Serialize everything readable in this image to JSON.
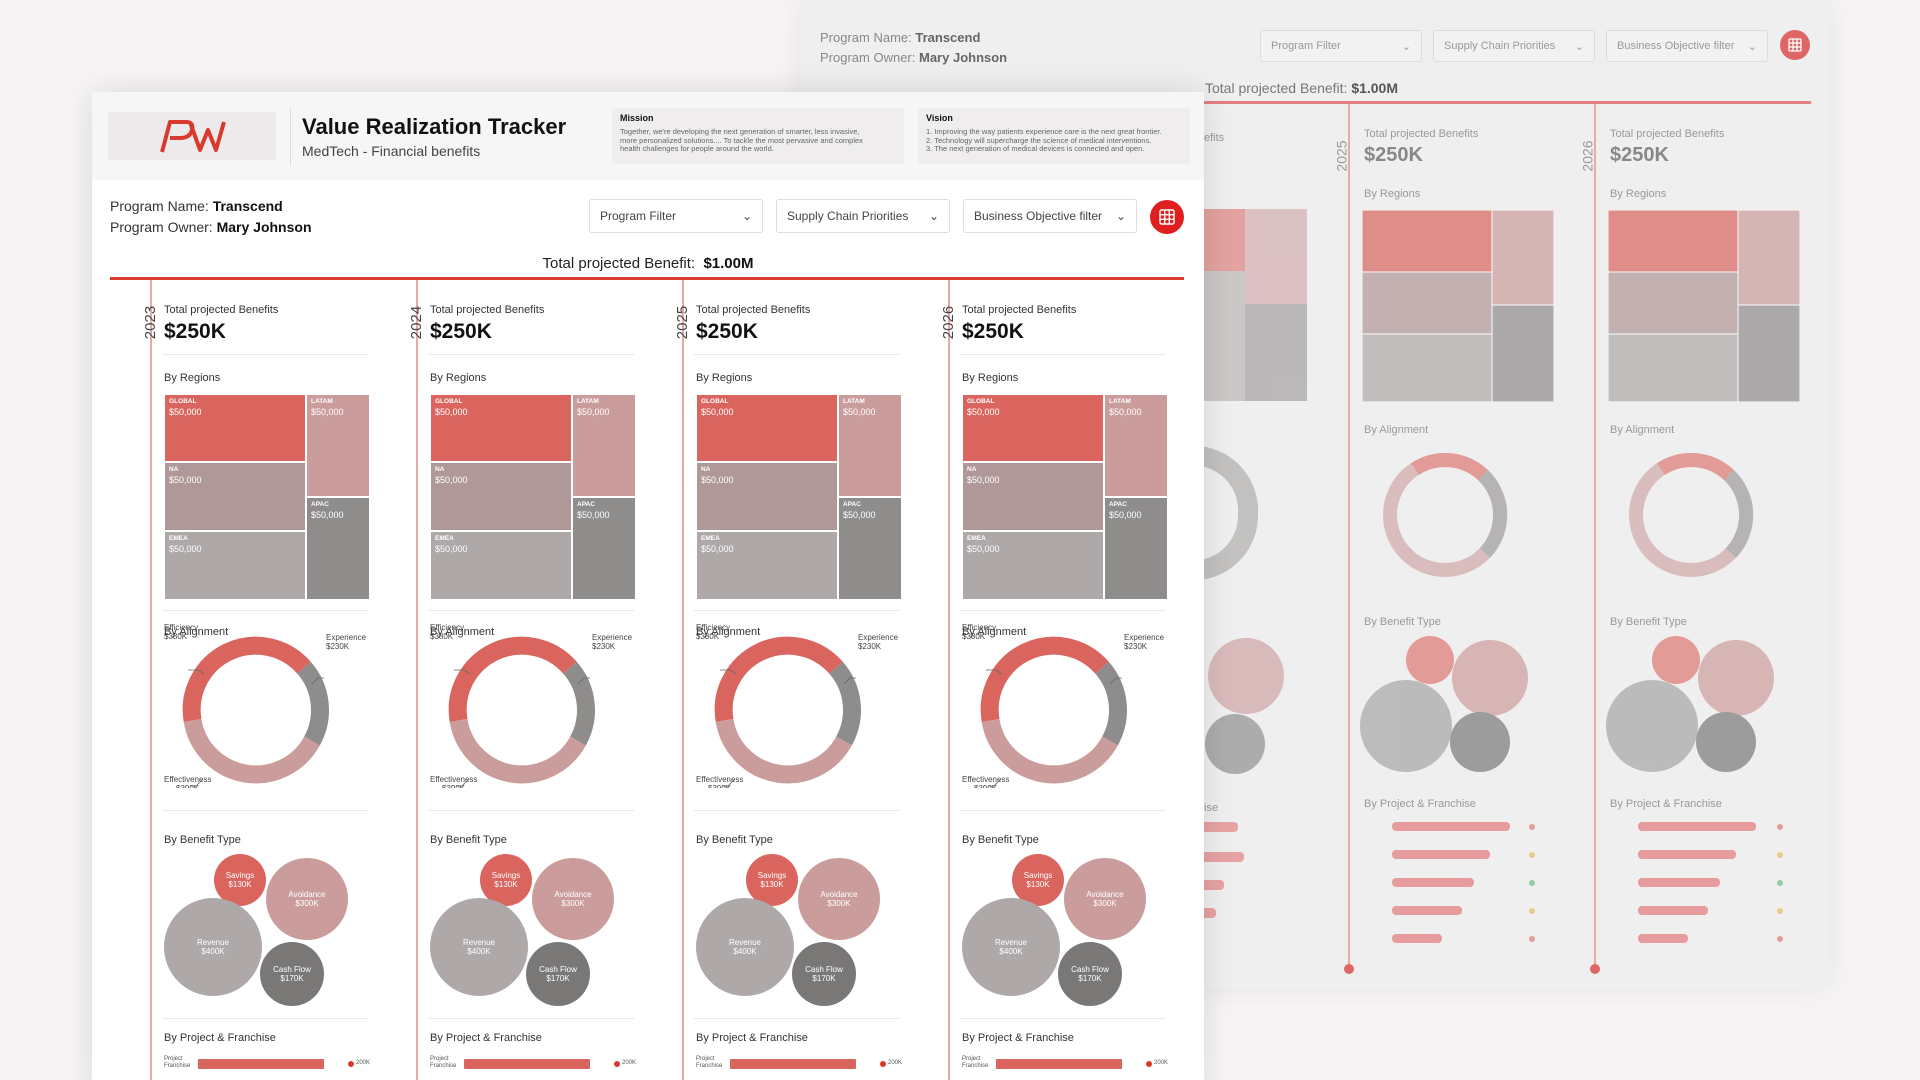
{
  "program": {
    "name_label": "Program Name:",
    "name": "Transcend",
    "owner_label": "Program Owner:",
    "owner": "Mary Johnson"
  },
  "header": {
    "title": "Value Realization Tracker",
    "subtitle": "MedTech - Financial benefits",
    "logo_text": "PW",
    "mission": {
      "title": "Mission",
      "text": "Together, we're developing the next generation of smarter, less invasive,\nmore personalized solutions....  To tackle the most pervasive and complex\nhealth challenges for people around the world."
    },
    "vision": {
      "title": "Vision",
      "text": "1. Improving the way patients experience care is the next great frontier.\n2. Technology will supercharge the science of medical interventions.\n3. The next generation of medical devices is connected and open."
    }
  },
  "filters": {
    "program": "Program Filter",
    "supply": "Supply Chain Priorities",
    "objective": "Business Objective filter"
  },
  "total": {
    "label": "Total projected Benefit:",
    "value": "$1.00M"
  },
  "labels": {
    "total_benefits": "Total projected Benefits",
    "by_regions": "By Regions",
    "by_alignment": "By Alignment",
    "by_benefit_type": "By Benefit Type",
    "by_project": "By Project & Franchise",
    "project_line1": "Project",
    "project_line2": "Franchise",
    "bar_value": "200K"
  },
  "years": [
    {
      "year": "2023",
      "value": "$250K"
    },
    {
      "year": "2024",
      "value": "$250K"
    },
    {
      "year": "2025",
      "value": "$250K"
    },
    {
      "year": "2026",
      "value": "$250K"
    }
  ],
  "bg_years": [
    {
      "year": "2025",
      "value": "$250K"
    },
    {
      "year": "2026",
      "value": "$250K"
    }
  ],
  "bg_partial": {
    "benefits_tail": "efits",
    "project_tail": "ise"
  },
  "regions": [
    {
      "name": "GLOBAL",
      "value": "$50,000"
    },
    {
      "name": "LATAM",
      "value": "$50,000"
    },
    {
      "name": "NA",
      "value": "$50,000"
    },
    {
      "name": "APAC",
      "value": "$50,000"
    },
    {
      "name": "EMEA",
      "value": "$50,000"
    }
  ],
  "alignment": [
    {
      "name": "Efficiency",
      "value": "$380K"
    },
    {
      "name": "Experience",
      "value": "$230K"
    },
    {
      "name": "Effectiveness",
      "value": "$390K"
    }
  ],
  "benefit_types": [
    {
      "name": "Savings",
      "value": "$130K"
    },
    {
      "name": "Avoidance",
      "value": "$300K"
    },
    {
      "name": "Revenue",
      "value": "$400K"
    },
    {
      "name": "Cash Flow",
      "value": "$170K"
    }
  ],
  "colors": {
    "accent": "#d93a30",
    "global": "#d9655e",
    "latam": "#cb9c9c",
    "na": "#b09898",
    "emea": "#aea8a8",
    "apac": "#8f8c8c"
  }
}
